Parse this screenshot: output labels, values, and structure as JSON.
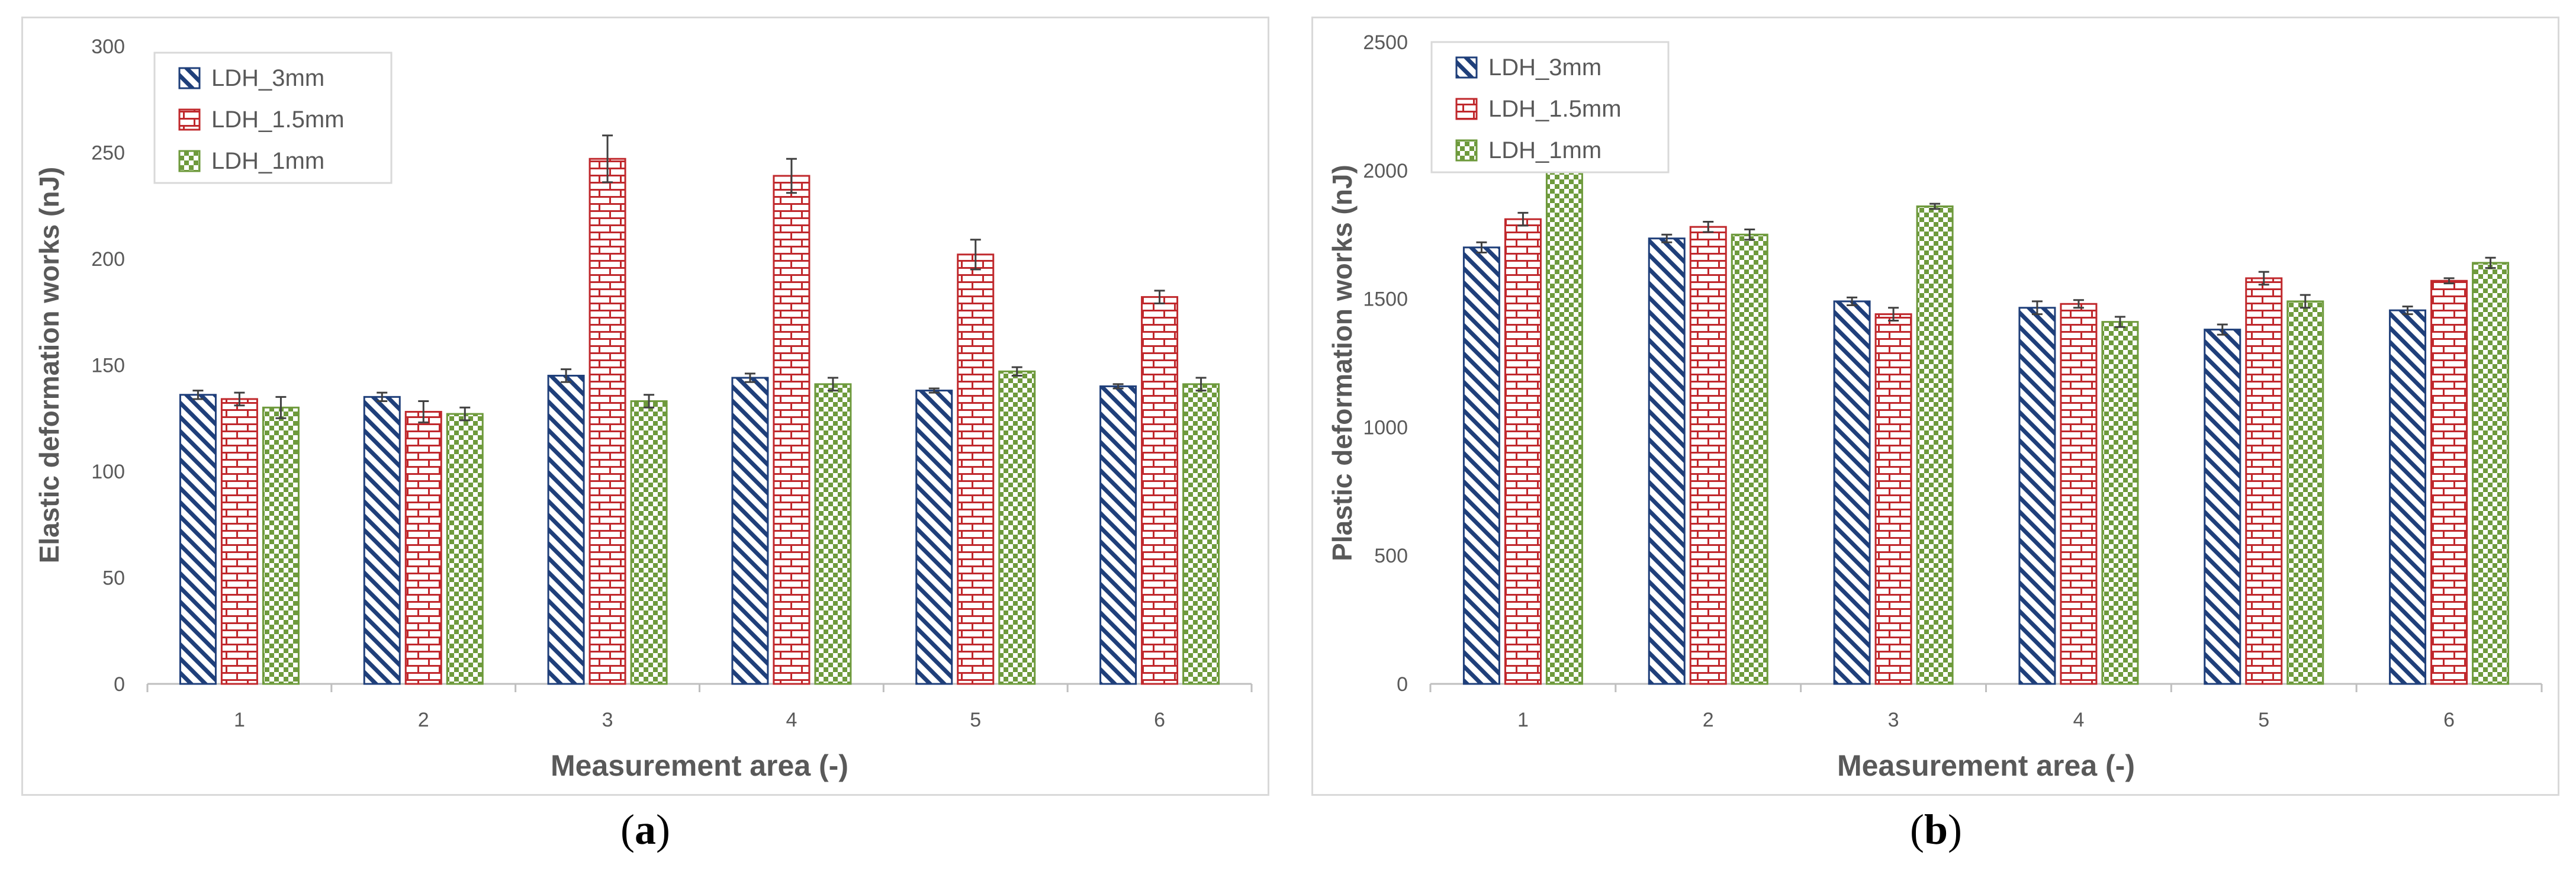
{
  "panels": [
    {
      "caption_open": "(",
      "caption_letter": "a",
      "caption_close": ")"
    },
    {
      "caption_open": "(",
      "caption_letter": "b",
      "caption_close": ")"
    }
  ],
  "chart_data": [
    {
      "type": "bar",
      "title": "",
      "xlabel": "Measurement area (-)",
      "ylabel": "Elastic deformation works (nJ)",
      "categories": [
        "1",
        "2",
        "3",
        "4",
        "5",
        "6"
      ],
      "ylim": [
        0,
        300
      ],
      "yticks": [
        0,
        50,
        100,
        150,
        200,
        250,
        300
      ],
      "grid": false,
      "legend_position": "top-left",
      "series": [
        {
          "name": "LDH_3mm",
          "pattern": "diagonal-stripes",
          "color": "#1f3f7a",
          "values": [
            136,
            135,
            145,
            144,
            138,
            140
          ],
          "errors": [
            2,
            2,
            3,
            2,
            1,
            1
          ]
        },
        {
          "name": "LDH_1.5mm",
          "pattern": "brick",
          "color": "#c0282c",
          "values": [
            134,
            128,
            247,
            239,
            202,
            182
          ],
          "errors": [
            3,
            5,
            11,
            8,
            7,
            3
          ]
        },
        {
          "name": "LDH_1mm",
          "pattern": "checkerboard",
          "color": "#6e9a3c",
          "values": [
            130,
            127,
            133,
            141,
            147,
            141
          ],
          "errors": [
            5,
            3,
            3,
            3,
            2,
            3
          ]
        }
      ]
    },
    {
      "type": "bar",
      "title": "",
      "xlabel": "Measurement area (-)",
      "ylabel": "Plastic deformation works (nJ)",
      "categories": [
        "1",
        "2",
        "3",
        "4",
        "5",
        "6"
      ],
      "ylim": [
        0,
        2500
      ],
      "yticks": [
        0,
        500,
        1000,
        1500,
        2000,
        2500
      ],
      "grid": false,
      "legend_position": "top-left",
      "series": [
        {
          "name": "LDH_3mm",
          "pattern": "diagonal-stripes",
          "color": "#1f3f7a",
          "values": [
            1700,
            1735,
            1490,
            1465,
            1380,
            1455
          ],
          "errors": [
            20,
            15,
            15,
            25,
            20,
            15
          ]
        },
        {
          "name": "LDH_1.5mm",
          "pattern": "brick",
          "color": "#c0282c",
          "values": [
            1810,
            1780,
            1440,
            1480,
            1580,
            1570
          ],
          "errors": [
            25,
            20,
            25,
            15,
            25,
            10
          ]
        },
        {
          "name": "LDH_1mm",
          "pattern": "checkerboard",
          "color": "#6e9a3c",
          "values": [
            2020,
            1750,
            1860,
            1410,
            1490,
            1640
          ],
          "errors": [
            15,
            20,
            10,
            20,
            25,
            20
          ]
        }
      ]
    }
  ]
}
